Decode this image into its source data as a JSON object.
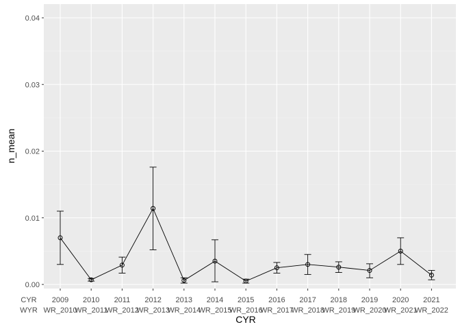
{
  "chart_data": {
    "type": "line",
    "title": "",
    "xlabel": "CYR",
    "ylabel": "n_mean",
    "x_header_labels": [
      "CYR",
      "WYR"
    ],
    "categories": [
      "2009",
      "2010",
      "2011",
      "2012",
      "2013",
      "2014",
      "2015",
      "2016",
      "2017",
      "2018",
      "2019",
      "2020",
      "2021"
    ],
    "secondary_categories": [
      "WR_2010",
      "WR_2011",
      "WR_2012",
      "WR_2013",
      "WR_2014",
      "WR_2015",
      "WR_2016",
      "WR_2017",
      "WR_2018",
      "WR_2019",
      "WR_2020",
      "WR_2021",
      "WR_2022"
    ],
    "series": [
      {
        "values": [
          0.007,
          0.0007,
          0.0029,
          0.0114,
          0.0006,
          0.0035,
          0.0005,
          0.0025,
          0.003,
          0.0026,
          0.0021,
          0.005,
          0.0014
        ],
        "error_low": [
          0.003,
          0.0005,
          0.0017,
          0.0052,
          0.0002,
          0.0004,
          0.0002,
          0.0017,
          0.0015,
          0.0018,
          0.001,
          0.003,
          0.0007
        ],
        "error_high": [
          0.011,
          0.0009,
          0.0041,
          0.0176,
          0.001,
          0.0067,
          0.0008,
          0.0033,
          0.0045,
          0.0034,
          0.0031,
          0.007,
          0.0021
        ]
      }
    ],
    "y_ticks": [
      "0.00",
      "0.01",
      "0.02",
      "0.03",
      "0.04"
    ],
    "y_tick_values": [
      0,
      0.01,
      0.02,
      0.03,
      0.04
    ],
    "ylim": [
      0,
      0.042
    ],
    "grid": true,
    "colors": {
      "panel": "#ebebeb",
      "grid_major": "#ffffff",
      "line": "#000000"
    }
  }
}
